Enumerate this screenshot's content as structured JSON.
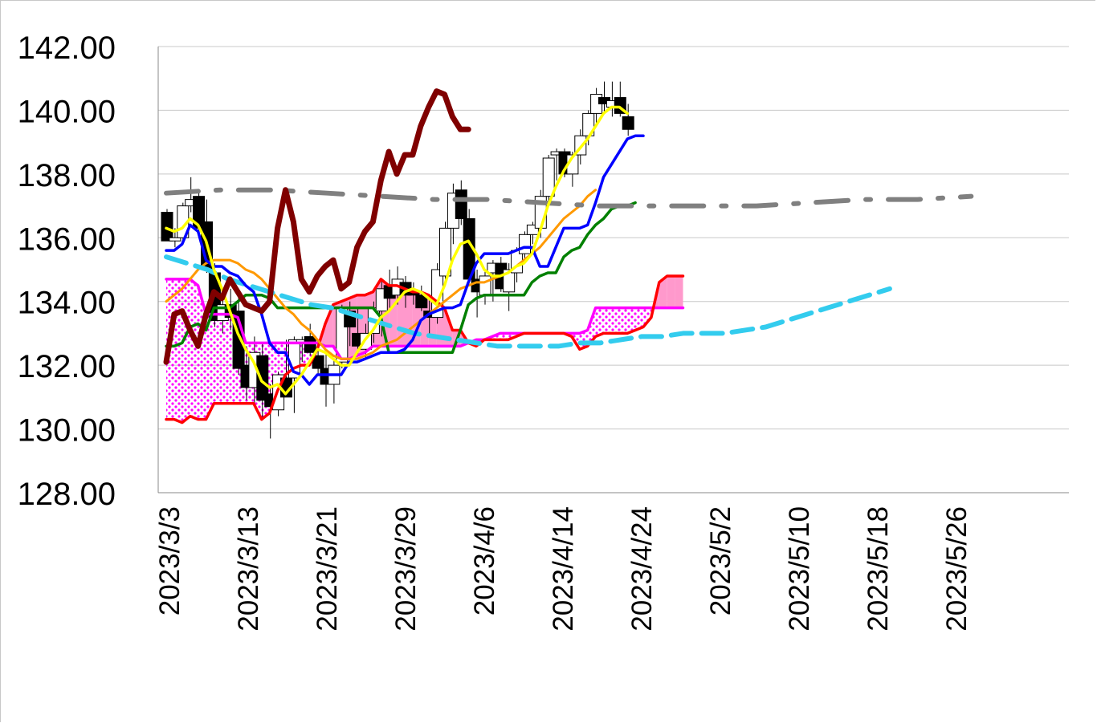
{
  "chart_data": {
    "type": "line",
    "title": "",
    "xlabel": "",
    "ylabel": "",
    "ylim": [
      128,
      142
    ],
    "yticks": [
      "142.00",
      "140.00",
      "138.00",
      "136.00",
      "134.00",
      "132.00",
      "130.00",
      "128.00"
    ],
    "x_tick_labels": [
      "2023/3/3",
      "2023/3/13",
      "2023/3/21",
      "2023/3/29",
      "2023/4/6",
      "2023/4/14",
      "2023/4/24",
      "2023/5/2",
      "2023/5/10",
      "2023/5/18",
      "2023/5/26"
    ],
    "grid": "horizontal",
    "legend": "none",
    "colors": {
      "conversion": "#ffff00",
      "base": "#0000ff",
      "lagging": "#800000",
      "cloud_upper": "#ff0000",
      "cloud_lower": "#ff00ff",
      "cloud_fill": "#ff99cc",
      "green_line": "#008000",
      "orange_line": "#ff9900",
      "cyan_dashed": "#33ccee",
      "gray_dashdot": "#808080"
    },
    "candles": [
      [
        136.8,
        136.9,
        135.9,
        135.9
      ],
      [
        135.9,
        136.3,
        135.7,
        136.0
      ],
      [
        136.0,
        137.1,
        135.9,
        137.0
      ],
      [
        137.0,
        137.9,
        136.8,
        137.2
      ],
      [
        137.3,
        137.5,
        136.1,
        136.3
      ],
      [
        136.5,
        137.2,
        134.9,
        135.0
      ],
      [
        134.9,
        135.2,
        133.2,
        133.4
      ],
      [
        133.4,
        134.3,
        133.0,
        133.9
      ],
      [
        133.9,
        134.4,
        133.1,
        133.5
      ],
      [
        133.7,
        134.2,
        131.7,
        131.9
      ],
      [
        132.0,
        132.6,
        130.9,
        131.3
      ],
      [
        131.3,
        132.9,
        130.8,
        132.4
      ],
      [
        132.3,
        132.7,
        130.3,
        130.9
      ],
      [
        131.1,
        131.4,
        129.7,
        130.7
      ],
      [
        130.6,
        131.8,
        130.4,
        131.7
      ],
      [
        131.6,
        132.8,
        131.1,
        131.0
      ],
      [
        131.6,
        132.9,
        130.5,
        132.8
      ],
      [
        132.7,
        132.9,
        132.1,
        132.8
      ],
      [
        132.9,
        133.3,
        132.3,
        132.4
      ],
      [
        132.3,
        132.8,
        131.7,
        131.9
      ],
      [
        131.9,
        132.4,
        130.7,
        131.4
      ],
      [
        131.4,
        132.2,
        130.8,
        132.0
      ],
      [
        132.1,
        133.9,
        131.9,
        133.8
      ],
      [
        133.7,
        134.0,
        132.6,
        133.2
      ],
      [
        133.0,
        133.8,
        132.3,
        132.6
      ],
      [
        132.5,
        133.3,
        132.2,
        133.0
      ],
      [
        133.0,
        134.0,
        132.7,
        133.8
      ],
      [
        133.7,
        134.7,
        132.9,
        134.4
      ],
      [
        134.5,
        135.0,
        133.8,
        134.1
      ],
      [
        134.2,
        135.1,
        133.9,
        134.7
      ],
      [
        134.6,
        134.8,
        133.8,
        134.2
      ],
      [
        134.3,
        134.6,
        133.9,
        134.2
      ],
      [
        134.2,
        134.5,
        133.7,
        133.8
      ],
      [
        133.7,
        134.2,
        132.9,
        133.5
      ],
      [
        133.5,
        135.2,
        133.3,
        135.0
      ],
      [
        134.8,
        136.5,
        134.5,
        136.3
      ],
      [
        136.3,
        137.7,
        135.8,
        137.4
      ],
      [
        137.5,
        137.8,
        136.4,
        136.6
      ],
      [
        136.6,
        136.9,
        134.6,
        134.7
      ],
      [
        134.7,
        135.0,
        133.5,
        134.3
      ],
      [
        134.2,
        135.0,
        133.9,
        134.8
      ],
      [
        134.9,
        135.3,
        134.0,
        135.2
      ],
      [
        135.2,
        135.4,
        134.3,
        134.4
      ],
      [
        134.3,
        135.2,
        133.7,
        135.0
      ],
      [
        134.9,
        135.7,
        134.6,
        135.6
      ],
      [
        135.5,
        136.2,
        135.2,
        136.1
      ],
      [
        136.1,
        136.5,
        135.8,
        136.4
      ],
      [
        136.3,
        137.5,
        136.0,
        137.3
      ],
      [
        137.3,
        138.6,
        137.0,
        138.5
      ],
      [
        138.6,
        138.8,
        137.8,
        138.7
      ],
      [
        138.7,
        138.8,
        137.9,
        138.0
      ],
      [
        138.0,
        138.7,
        137.6,
        138.6
      ],
      [
        138.6,
        139.4,
        138.3,
        139.2
      ],
      [
        139.2,
        140.0,
        138.9,
        139.9
      ],
      [
        139.9,
        140.7,
        139.6,
        140.5
      ],
      [
        140.4,
        140.9,
        139.9,
        140.2
      ],
      [
        140.1,
        140.9,
        139.8,
        140.3
      ],
      [
        140.4,
        140.9,
        139.8,
        139.9
      ],
      [
        139.8,
        140.2,
        139.2,
        139.4
      ]
    ],
    "series": [
      {
        "values": [
          136.3,
          136.2,
          136.3,
          136.6,
          136.4,
          135.9,
          135.0,
          134.4,
          133.7,
          133.0,
          132.5,
          132.1,
          131.5,
          131.3,
          131.4,
          131.1,
          131.4,
          131.7,
          132.1,
          132.5,
          132.4,
          132.2,
          132.0,
          132.0,
          132.4,
          132.8,
          133.1,
          133.5,
          133.7,
          134.0,
          134.3,
          134.4,
          134.3,
          134.1,
          133.9,
          134.5,
          135.3,
          135.8,
          135.9,
          135.5,
          135.0,
          134.8,
          134.8,
          134.9,
          135.1,
          135.2,
          135.5,
          136.2,
          137.0,
          137.6,
          138.1,
          138.5,
          138.8,
          139.1,
          139.5,
          139.9,
          140.1,
          140.1,
          139.9
        ]
      },
      {
        "values": [
          135.6,
          135.6,
          135.8,
          136.4,
          136.2,
          135.3,
          135.1,
          135.1,
          134.9,
          134.8,
          134.5,
          134.3,
          133.6,
          132.7,
          132.4,
          132.4,
          131.8,
          131.7,
          131.4,
          131.7,
          131.7,
          131.7,
          131.7,
          132.1,
          132.1,
          132.2,
          132.3,
          132.4,
          132.4,
          132.4,
          132.5,
          132.8,
          133.4,
          133.6,
          133.7,
          133.8,
          133.8,
          133.9,
          134.6,
          135.2,
          135.5,
          135.5,
          135.5,
          135.5,
          135.6,
          135.7,
          135.7,
          135.1,
          135.1,
          135.7,
          136.3,
          136.3,
          136.3,
          136.4,
          137.1,
          137.9,
          138.3,
          138.7,
          139.1,
          139.2,
          139.2
        ]
      },
      {
        "values": [
          132.1,
          133.6,
          133.7,
          133.1,
          132.6,
          133.6,
          134.3,
          134.1,
          134.7,
          134.3,
          133.9,
          133.8,
          133.7,
          134.0,
          136.3,
          137.5,
          136.5,
          134.7,
          134.3,
          134.8,
          135.1,
          135.3,
          134.4,
          134.6,
          135.7,
          136.2,
          136.5,
          137.8,
          138.7,
          138.0,
          138.6,
          138.6,
          139.5,
          140.1,
          140.6,
          140.5,
          139.8,
          139.4,
          139.4
        ]
      },
      {
        "values": [
          130.3,
          130.3,
          130.2,
          130.4,
          130.3,
          130.3,
          130.8,
          130.8,
          130.8,
          130.8,
          130.8,
          130.8,
          130.3,
          130.5,
          131.2,
          131.7,
          131.9,
          132.0,
          132.0,
          132.5,
          133.3,
          133.9,
          134.0,
          134.1,
          134.2,
          134.2,
          134.3,
          134.7,
          134.5,
          134.5,
          134.4,
          134.3,
          134.3,
          134.2,
          134.0,
          133.8,
          133.1,
          133.1,
          132.7,
          132.6,
          132.8,
          132.8,
          132.8,
          132.8,
          132.9,
          133.0,
          133.0,
          133.0,
          133.0,
          133.0,
          133.0,
          132.9,
          132.5,
          132.6,
          132.9,
          133.0,
          133.0,
          133.0,
          133.0,
          133.1,
          133.2,
          133.5,
          134.6,
          134.8,
          134.8,
          134.8
        ]
      },
      {
        "values": [
          134.7,
          134.7,
          134.7,
          134.7,
          134.5,
          133.6,
          133.6,
          133.6,
          133.6,
          133.5,
          132.7,
          132.7,
          132.7,
          132.7,
          132.7,
          132.7,
          132.7,
          132.7,
          132.7,
          132.7,
          132.6,
          132.6,
          132.2,
          132.2,
          132.3,
          132.4,
          132.6,
          132.6,
          132.6,
          132.6,
          132.6,
          132.6,
          132.6,
          132.6,
          132.6,
          132.6,
          132.6,
          132.6,
          132.7,
          132.8,
          132.8,
          132.9,
          133.0,
          133.0,
          133.0,
          133.0,
          133.0,
          133.0,
          133.0,
          133.0,
          133.0,
          133.0,
          133.0,
          133.1,
          133.8,
          133.8,
          133.8,
          133.8,
          133.8,
          133.8,
          133.8,
          133.8,
          133.8,
          133.8,
          133.8,
          133.8
        ]
      },
      {
        "values": [
          132.6,
          132.6,
          132.7,
          133.2,
          133.3,
          133.1,
          133.8,
          133.8,
          133.8,
          134.0,
          134.2,
          134.2,
          134.2,
          134.1,
          133.8,
          133.8,
          133.8,
          133.8,
          133.8,
          133.8,
          133.8,
          133.8,
          133.8,
          133.8,
          133.8,
          133.8,
          133.8,
          133.5,
          132.4,
          132.4,
          132.4,
          132.4,
          132.4,
          132.4,
          132.4,
          132.4,
          132.4,
          133.1,
          133.9,
          134.1,
          134.2,
          134.2,
          134.2,
          134.2,
          134.2,
          134.2,
          134.6,
          134.8,
          134.9,
          134.9,
          135.4,
          135.6,
          135.7,
          136.1,
          136.4,
          136.6,
          136.9,
          137.0,
          137.0,
          137.1
        ]
      },
      {
        "values": [
          134.0,
          134.2,
          134.4,
          134.7,
          135.0,
          135.2,
          135.3,
          135.3,
          135.3,
          135.2,
          135.0,
          134.9,
          134.7,
          134.4,
          134.1,
          133.8,
          133.6,
          133.3,
          133.1,
          132.8,
          132.5,
          132.3,
          132.2,
          132.2,
          132.2,
          132.3,
          132.4,
          132.6,
          132.7,
          132.8,
          133.0,
          133.2,
          133.4,
          133.6,
          133.8,
          134.0,
          134.2,
          134.4,
          134.5,
          134.6,
          134.6,
          134.7,
          134.8,
          134.9,
          135.1,
          135.3,
          135.5,
          135.7,
          136.0,
          136.3,
          136.6,
          136.8,
          137.0,
          137.3,
          137.5
        ]
      },
      {
        "values": [
          135.4,
          135.2,
          135.0,
          134.7,
          134.5,
          134.3,
          134.1,
          133.9,
          133.8,
          133.6,
          133.4,
          133.2,
          133.0,
          132.9,
          132.8,
          132.7,
          132.6,
          132.6,
          132.6,
          132.6,
          132.7,
          132.7,
          132.8,
          132.9,
          132.9,
          133.0,
          133.0,
          133.0,
          133.1,
          133.2,
          133.4,
          133.6,
          133.8,
          134.0,
          134.2,
          134.4
        ]
      },
      {
        "values": [
          137.4,
          137.5,
          137.5,
          137.4,
          137.3,
          137.2,
          137.2,
          137.1,
          137.0,
          137.0,
          137.0,
          137.0,
          137.1,
          137.2,
          137.2,
          137.3
        ]
      }
    ]
  }
}
